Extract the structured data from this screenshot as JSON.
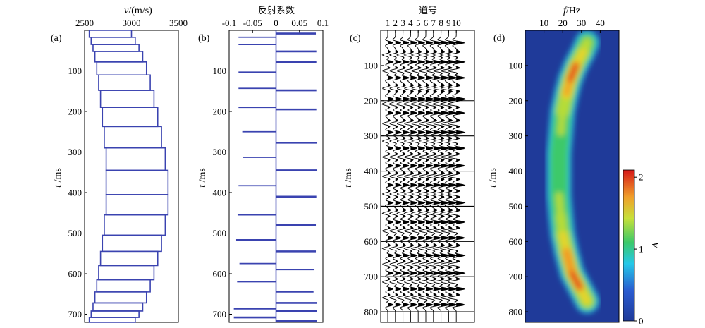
{
  "figure": {
    "panels": [
      {
        "letter": "(a)",
        "xlabel_italic": "v",
        "xlabel_rest": "/(m/s)",
        "ylabel_italic": "t",
        "ylabel_rest": " /ms"
      },
      {
        "letter": "(b)",
        "xlabel": "反射系数",
        "ylabel_italic": "t",
        "ylabel_rest": " /ms"
      },
      {
        "letter": "(c)",
        "xlabel": "道号",
        "ylabel_italic": "t",
        "ylabel_rest": " /ms"
      },
      {
        "letter": "(d)",
        "xlabel_italic": "f",
        "xlabel_rest": "/Hz",
        "ylabel_italic": "t",
        "ylabel_rest": " /ms",
        "colorbar_label": "A"
      }
    ]
  },
  "chart_data": [
    {
      "type": "line",
      "panel": "(a)",
      "description_axis": "velocity vs time",
      "xlim": [
        2500,
        3500
      ],
      "xticks": [
        "2500",
        "3000",
        "3500"
      ],
      "ylim": [
        0,
        720
      ],
      "yticks": [
        "100",
        "200",
        "300",
        "400",
        "500",
        "600",
        "700"
      ],
      "series": [
        {
          "pairs": [
            [
              2550,
              3000,
              0,
              17
            ],
            [
              2570,
              3040,
              17,
              35
            ],
            [
              2590,
              3080,
              35,
              52
            ],
            [
              2610,
              3120,
              52,
              78
            ],
            [
              2630,
              3160,
              78,
              110
            ],
            [
              2650,
              3200,
              110,
              148
            ],
            [
              2670,
              3240,
              148,
              190
            ],
            [
              2690,
              3280,
              190,
              237
            ],
            [
              2710,
              3320,
              237,
              290
            ],
            [
              2730,
              3360,
              290,
              345
            ],
            [
              2730,
              3390,
              345,
              405
            ],
            [
              2730,
              3390,
              405,
              455
            ],
            [
              2710,
              3360,
              455,
              505
            ],
            [
              2690,
              3320,
              505,
              545
            ],
            [
              2670,
              3280,
              545,
              580
            ],
            [
              2650,
              3240,
              580,
              615
            ],
            [
              2630,
              3200,
              615,
              645
            ],
            [
              2610,
              3160,
              645,
              672
            ],
            [
              2590,
              3120,
              672,
              692
            ],
            [
              2570,
              3080,
              692,
              708
            ],
            [
              2550,
              3040,
              708,
              720
            ]
          ]
        }
      ],
      "color": "#3a43b0"
    },
    {
      "type": "bar",
      "panel": "(b)",
      "description_axis": "reflection coefficient vs time",
      "xlim": [
        -0.1,
        0.1
      ],
      "xticks": [
        "-0.1",
        "-0.05",
        "0",
        "0.05",
        "0.1"
      ],
      "ylim": [
        0,
        720
      ],
      "yticks": [
        "100",
        "200",
        "300",
        "400",
        "500",
        "600",
        "700"
      ],
      "values": [
        [
          8,
          0.085
        ],
        [
          17,
          -0.08
        ],
        [
          35,
          -0.08
        ],
        [
          52,
          0.086
        ],
        [
          78,
          0.086
        ],
        [
          103,
          -0.08
        ],
        [
          143,
          -0.08
        ],
        [
          148,
          0.086
        ],
        [
          190,
          -0.08
        ],
        [
          195,
          0.086
        ],
        [
          250,
          -0.072
        ],
        [
          277,
          0.088
        ],
        [
          313,
          -0.07
        ],
        [
          345,
          0.088
        ],
        [
          383,
          -0.08
        ],
        [
          410,
          0.086
        ],
        [
          455,
          -0.082
        ],
        [
          480,
          0.085
        ],
        [
          517,
          -0.085
        ],
        [
          545,
          0.085
        ],
        [
          575,
          -0.078
        ],
        [
          590,
          0.082
        ],
        [
          620,
          -0.083
        ],
        [
          645,
          0.08
        ],
        [
          672,
          0.088
        ],
        [
          686,
          -0.09
        ],
        [
          692,
          0.087
        ],
        [
          708,
          -0.09
        ],
        [
          716,
          0.087
        ]
      ],
      "color": "#3a43b0"
    },
    {
      "type": "line",
      "panel": "(c)",
      "description_axis": "synthetic traces (wiggle plot) vs time",
      "xticks": [
        "1",
        "2",
        "3",
        "4",
        "5",
        "6",
        "7",
        "8",
        "9",
        "10"
      ],
      "ylim": [
        0,
        830
      ],
      "yticks": [
        "100",
        "200",
        "300",
        "400",
        "500",
        "600",
        "700",
        "800"
      ],
      "events_ms": [
        35,
        70,
        90,
        115,
        135,
        165,
        195,
        210,
        235,
        265,
        290,
        315,
        335,
        360,
        385,
        415,
        440,
        465,
        490,
        520,
        545,
        570,
        590,
        620,
        640,
        665,
        690,
        715,
        735,
        760,
        780
      ]
    },
    {
      "type": "heatmap",
      "panel": "(d)",
      "description_axis": "time-frequency amplitude",
      "xlim": [
        0,
        50
      ],
      "xticks": [
        "10",
        "20",
        "30",
        "40"
      ],
      "ylim": [
        0,
        830
      ],
      "yticks": [
        "100",
        "200",
        "300",
        "400",
        "500",
        "600",
        "700",
        "800"
      ],
      "colorbar": {
        "range": [
          0,
          2.1
        ],
        "ticks": [
          "0",
          "1",
          "2"
        ]
      },
      "ridge": [
        [
          35,
          33,
          1.0
        ],
        [
          60,
          31,
          1.3
        ],
        [
          100,
          27,
          1.9
        ],
        [
          140,
          24,
          2.1
        ],
        [
          180,
          22,
          1.6
        ],
        [
          230,
          20,
          1.1
        ],
        [
          290,
          19,
          0.9
        ],
        [
          350,
          18,
          0.85
        ],
        [
          410,
          18,
          0.85
        ],
        [
          470,
          18,
          0.9
        ],
        [
          530,
          19,
          1.0
        ],
        [
          580,
          20,
          1.3
        ],
        [
          630,
          22,
          1.8
        ],
        [
          690,
          25,
          2.1
        ],
        [
          730,
          29,
          1.9
        ],
        [
          770,
          33,
          1.3
        ]
      ]
    }
  ]
}
